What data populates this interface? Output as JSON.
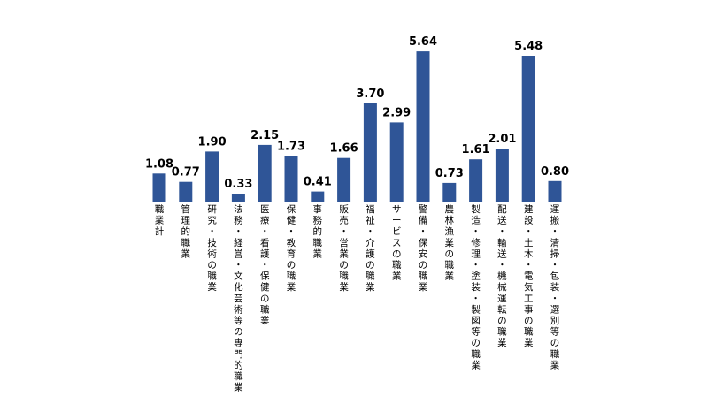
{
  "chart_data": {
    "type": "bar",
    "categories": [
      "職業計",
      "管理的職業",
      "研究・技術の職業",
      "法務・経営・文化芸術等の専門的職業",
      "医療・看護・保健の職業",
      "保健・教育の職業",
      "事務的職業",
      "販売・営業の職業",
      "福祉・介護の職業",
      "サービスの職業",
      "警備・保安の職業",
      "農林漁業の職業",
      "製造・修理・塗装・製図等の職業",
      "配送・輸送・機械運転の職業",
      "建設・土木・電気工事の職業",
      "運搬・清掃・包装・選別等の職業"
    ],
    "values": [
      1.08,
      0.77,
      1.9,
      0.33,
      2.15,
      1.73,
      0.41,
      1.66,
      3.7,
      2.99,
      5.64,
      0.73,
      1.61,
      2.01,
      5.48,
      0.8
    ],
    "value_labels": [
      "1.08",
      "0.77",
      "1.90",
      "0.33",
      "2.15",
      "1.73",
      "0.41",
      "1.66",
      "3.70",
      "2.99",
      "5.64",
      "0.73",
      "1.61",
      "2.01",
      "5.48",
      "0.80"
    ],
    "ylim": [
      0,
      6
    ],
    "bar_color": "#2F5597"
  }
}
